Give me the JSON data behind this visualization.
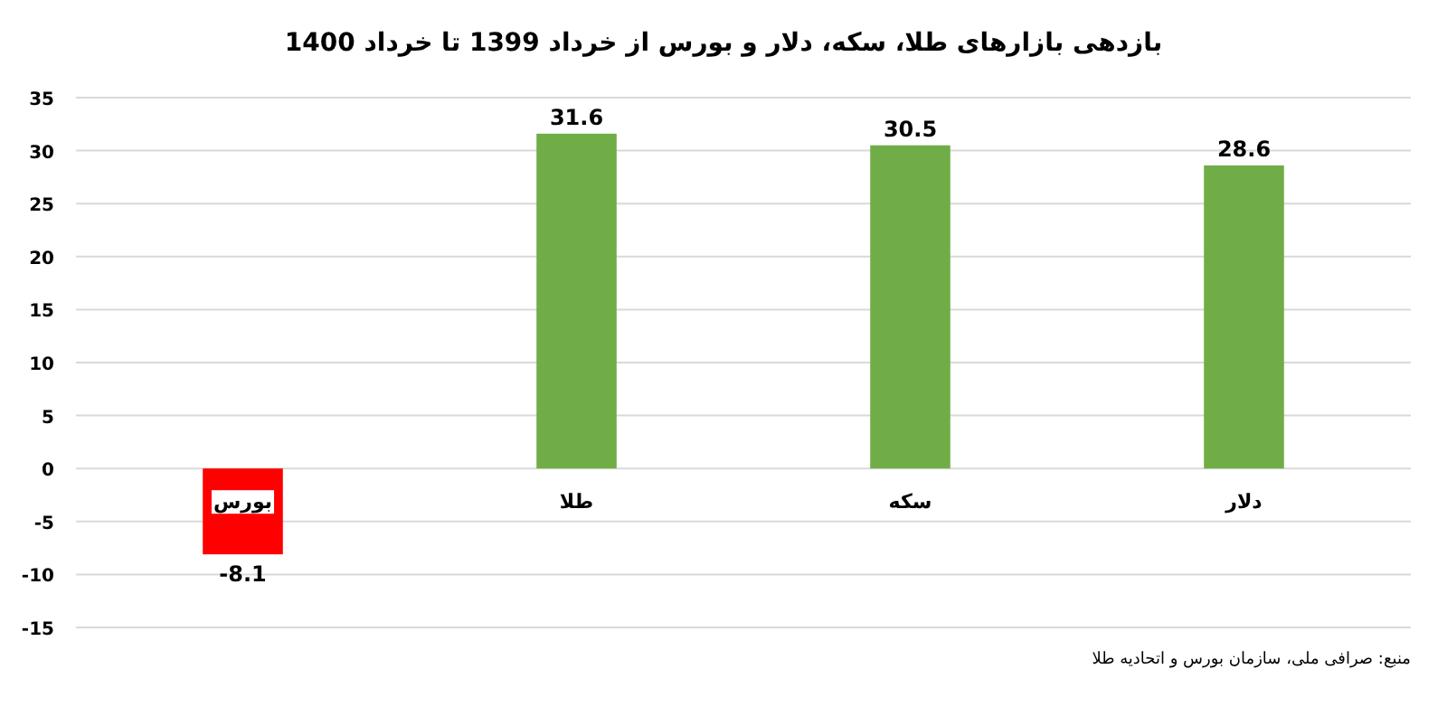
{
  "chart_data": {
    "type": "bar",
    "title": "بازدهی بازارهای طلا، سکه، دلار و بورس از خرداد 1399 تا خرداد 1400",
    "categories": [
      "بورس",
      "طلا",
      "سکه",
      "دلار"
    ],
    "values": [
      -8.1,
      31.6,
      30.5,
      28.6
    ],
    "colors": [
      "#ff0000",
      "#70ad47",
      "#70ad47",
      "#70ad47"
    ],
    "ylim": [
      -15,
      35
    ],
    "yticks": [
      -15,
      -10,
      -5,
      0,
      5,
      10,
      15,
      20,
      25,
      30,
      35
    ],
    "grid": "y",
    "data_labels": true,
    "annotations": [
      "منبع: صرافی ملی، سازمان بورس و اتحادیه طلا"
    ]
  }
}
